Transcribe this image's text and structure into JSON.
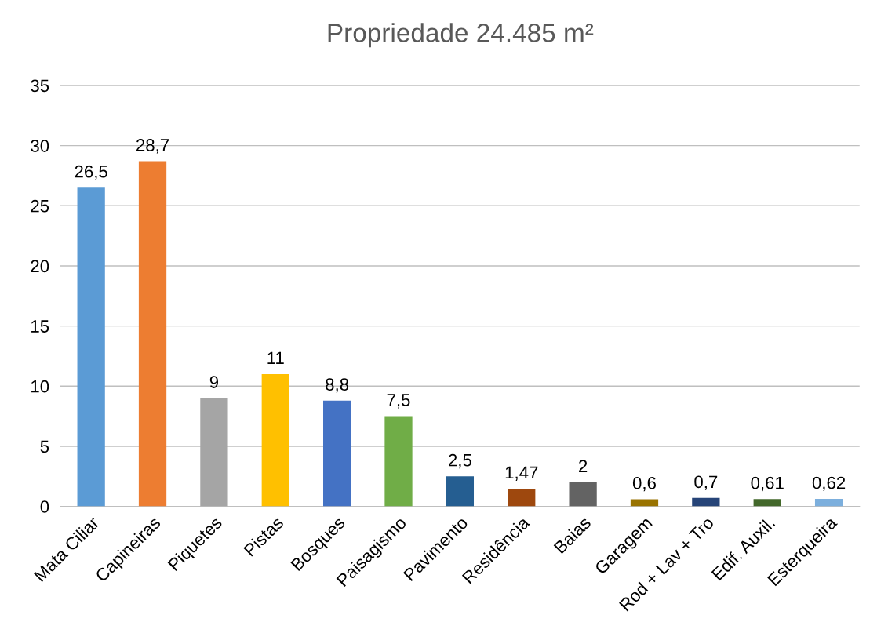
{
  "chart_data": {
    "type": "bar",
    "title": "Propriedade 24.485 m²",
    "categories": [
      "Mata Ciliar",
      "Capineiras",
      "Piquetes",
      "Pistas",
      "Bosques",
      "Paisagismo",
      "Pavimento",
      "Residência",
      "Baias",
      "Garagem",
      "Rod + Lav + Tro",
      "Edif. Auxil.",
      "Esterqueira"
    ],
    "values": [
      26.5,
      28.7,
      9,
      11,
      8.8,
      7.5,
      2.5,
      1.47,
      2,
      0.6,
      0.7,
      0.61,
      0.62
    ],
    "value_labels": [
      "26,5",
      "28,7",
      "9",
      "11",
      "8,8",
      "7,5",
      "2,5",
      "1,47",
      "2",
      "0,6",
      "0,7",
      "0,61",
      "0,62"
    ],
    "colors": [
      "#5b9bd5",
      "#ed7d31",
      "#a5a5a5",
      "#ffc000",
      "#4472c4",
      "#70ad47",
      "#255e91",
      "#9e480e",
      "#636363",
      "#997300",
      "#264478",
      "#43682b",
      "#7cafdd"
    ],
    "ylim": [
      0,
      35
    ],
    "yticks": [
      0,
      5,
      10,
      15,
      20,
      25,
      30,
      35
    ],
    "grid": "y",
    "legend": false
  }
}
